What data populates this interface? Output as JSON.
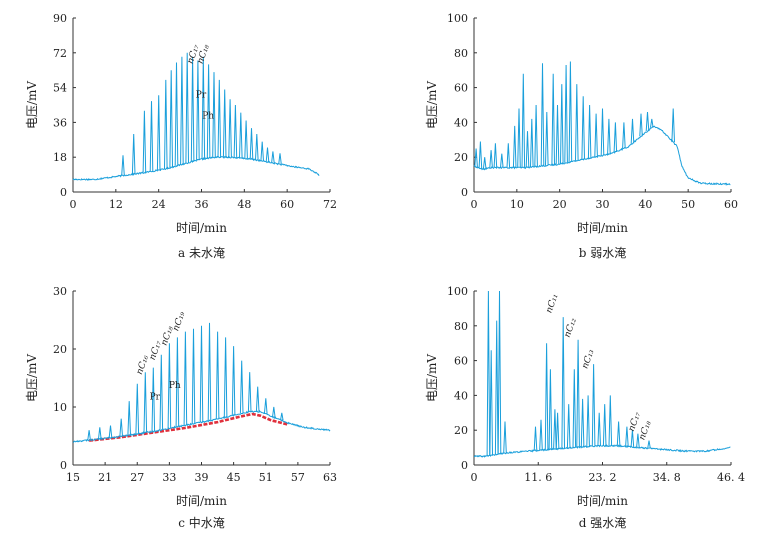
{
  "chart_data": [
    {
      "id": "a",
      "type": "line",
      "caption": "a  未水淹",
      "xlabel": "时间/min",
      "ylabel": "电压/mV",
      "xlim": [
        0,
        72
      ],
      "ylim": [
        0,
        90
      ],
      "xticks": [
        0,
        12,
        24,
        36,
        48,
        60,
        72
      ],
      "yticks": [
        0,
        18,
        36,
        54,
        72,
        90
      ],
      "xtick_labels": [
        "0",
        "12",
        "24",
        "36",
        "48",
        "60",
        "72"
      ],
      "ytick_labels": [
        "0",
        "18",
        "36",
        "54",
        "72",
        "90"
      ],
      "color": "#1a9fdb",
      "baseline": [
        [
          0,
          6.5
        ],
        [
          6,
          6.5
        ],
        [
          10,
          7.5
        ],
        [
          14,
          8.5
        ],
        [
          20,
          10
        ],
        [
          26,
          12
        ],
        [
          32,
          15
        ],
        [
          36,
          17
        ],
        [
          40,
          18
        ],
        [
          44,
          18
        ],
        [
          50,
          17
        ],
        [
          56,
          15
        ],
        [
          62,
          13
        ],
        [
          66,
          12
        ],
        [
          68,
          10
        ],
        [
          69,
          8.5
        ]
      ],
      "peaks": [
        [
          14,
          19
        ],
        [
          17,
          30
        ],
        [
          20,
          42
        ],
        [
          22,
          47
        ],
        [
          24,
          50
        ],
        [
          26,
          58
        ],
        [
          27.5,
          63
        ],
        [
          29,
          67
        ],
        [
          30.5,
          70
        ],
        [
          32,
          72
        ],
        [
          33.5,
          70
        ],
        [
          35,
          68
        ],
        [
          36.5,
          70
        ],
        [
          38,
          66
        ],
        [
          39.5,
          62
        ],
        [
          41,
          58
        ],
        [
          42.5,
          53
        ],
        [
          44,
          48
        ],
        [
          45.5,
          45
        ],
        [
          47,
          41
        ],
        [
          48.5,
          37
        ],
        [
          50,
          33
        ],
        [
          51.5,
          30
        ],
        [
          53,
          26
        ],
        [
          54.5,
          23
        ],
        [
          56,
          21
        ],
        [
          58,
          20
        ]
      ],
      "annotations": [
        {
          "text": "nC₁₇",
          "x": 33.4,
          "y": 66
        },
        {
          "text": "nC₁₈",
          "x": 36.2,
          "y": 66
        },
        {
          "text": "Pr",
          "x": 34.4,
          "y": 49
        },
        {
          "text": "Ph",
          "x": 36.2,
          "y": 38
        }
      ]
    },
    {
      "id": "b",
      "type": "line",
      "caption": "b  弱水淹",
      "xlabel": "时间/min",
      "ylabel": "电压/mV",
      "xlim": [
        0,
        60
      ],
      "ylim": [
        0,
        100
      ],
      "xticks": [
        0,
        10,
        20,
        30,
        40,
        50,
        60
      ],
      "yticks": [
        0,
        20,
        40,
        60,
        80,
        100
      ],
      "xtick_labels": [
        "0",
        "10",
        "20",
        "30",
        "40",
        "50",
        "60"
      ],
      "ytick_labels": [
        "0",
        "20",
        "40",
        "60",
        "80",
        "100"
      ],
      "color": "#1a9fdb",
      "baseline": [
        [
          0,
          15
        ],
        [
          2,
          13
        ],
        [
          4,
          14
        ],
        [
          8,
          14
        ],
        [
          12,
          14
        ],
        [
          16,
          15
        ],
        [
          20,
          16
        ],
        [
          24,
          18
        ],
        [
          28,
          20
        ],
        [
          32,
          22
        ],
        [
          36,
          26
        ],
        [
          40,
          34
        ],
        [
          42,
          38
        ],
        [
          44,
          35
        ],
        [
          46,
          30
        ],
        [
          47.5,
          26
        ],
        [
          48.5,
          15
        ],
        [
          50,
          8
        ],
        [
          53,
          5
        ],
        [
          60,
          4.5
        ]
      ],
      "peaks": [
        [
          0.5,
          25
        ],
        [
          1.5,
          29
        ],
        [
          2.5,
          20
        ],
        [
          4,
          24
        ],
        [
          5,
          28
        ],
        [
          6.5,
          22
        ],
        [
          8,
          28
        ],
        [
          9.5,
          38
        ],
        [
          10.5,
          48
        ],
        [
          11.5,
          68
        ],
        [
          12.5,
          35
        ],
        [
          13.5,
          42
        ],
        [
          14.5,
          50
        ],
        [
          16,
          74
        ],
        [
          17,
          46
        ],
        [
          18.5,
          68
        ],
        [
          19.5,
          50
        ],
        [
          20.5,
          62
        ],
        [
          21.5,
          73
        ],
        [
          22.5,
          75
        ],
        [
          24,
          62
        ],
        [
          25.5,
          55
        ],
        [
          27,
          50
        ],
        [
          28.5,
          45
        ],
        [
          30,
          48
        ],
        [
          31.5,
          42
        ],
        [
          33,
          40
        ],
        [
          35,
          40
        ],
        [
          37,
          42
        ],
        [
          39,
          45
        ],
        [
          40.5,
          46
        ],
        [
          41.5,
          42
        ],
        [
          46.5,
          48
        ]
      ],
      "annotations": []
    },
    {
      "id": "c",
      "type": "line",
      "caption": "c  中水淹",
      "xlabel": "时间/min",
      "ylabel": "电压/mV",
      "xlim": [
        15,
        63
      ],
      "ylim": [
        0,
        30
      ],
      "xticks": [
        15,
        21,
        27,
        33,
        39,
        45,
        51,
        57,
        63
      ],
      "yticks": [
        0,
        10,
        20,
        30
      ],
      "xtick_labels": [
        "15",
        "21",
        "27",
        "33",
        "39",
        "45",
        "51",
        "57",
        "63"
      ],
      "ytick_labels": [
        "0",
        "10",
        "20",
        "30"
      ],
      "color": "#1a9fdb",
      "ucm_color": "#e0303c",
      "ucm": [
        [
          18,
          4.2
        ],
        [
          24,
          4.8
        ],
        [
          30,
          5.6
        ],
        [
          36,
          6.4
        ],
        [
          42,
          7.4
        ],
        [
          46,
          8.3
        ],
        [
          48.5,
          8.8
        ],
        [
          50,
          8.5
        ],
        [
          52,
          7.7
        ],
        [
          55,
          7
        ]
      ],
      "baseline": [
        [
          15,
          4
        ],
        [
          18,
          4.3
        ],
        [
          22,
          4.7
        ],
        [
          26,
          5.2
        ],
        [
          30,
          5.8
        ],
        [
          34,
          6.5
        ],
        [
          38,
          7.2
        ],
        [
          42,
          7.9
        ],
        [
          45,
          8.6
        ],
        [
          48,
          9.2
        ],
        [
          50,
          9.2
        ],
        [
          52,
          8.4
        ],
        [
          55,
          7.3
        ],
        [
          58,
          6.5
        ],
        [
          63,
          6
        ]
      ],
      "peaks": [
        [
          18,
          6
        ],
        [
          20,
          6.5
        ],
        [
          22,
          6.8
        ],
        [
          24,
          8
        ],
        [
          25.5,
          11
        ],
        [
          27,
          14
        ],
        [
          28.5,
          16
        ],
        [
          30,
          16.8
        ],
        [
          31.5,
          19
        ],
        [
          33,
          21
        ],
        [
          34.5,
          22
        ],
        [
          36,
          23
        ],
        [
          37.5,
          23.5
        ],
        [
          39,
          24
        ],
        [
          40.5,
          24.5
        ],
        [
          42,
          23
        ],
        [
          43.5,
          22
        ],
        [
          45,
          20.5
        ],
        [
          46.5,
          18
        ],
        [
          48,
          16
        ],
        [
          49.5,
          13.5
        ],
        [
          51,
          11.5
        ],
        [
          52.5,
          10
        ],
        [
          54,
          9
        ]
      ],
      "annotations": [
        {
          "text": "nC₁₆",
          "x": 27.8,
          "y": 15.5
        },
        {
          "text": "nC₁₇",
          "x": 30.2,
          "y": 18
        },
        {
          "text": "nC₁₈",
          "x": 32.4,
          "y": 20.5
        },
        {
          "text": "nC₁₉",
          "x": 34.6,
          "y": 23
        },
        {
          "text": "Pr",
          "x": 29.3,
          "y": 11.3
        },
        {
          "text": "Ph",
          "x": 32.9,
          "y": 13.3
        }
      ]
    },
    {
      "id": "d",
      "type": "line",
      "caption": "d  强水淹",
      "xlabel": "时间/min",
      "ylabel": "电压/mV",
      "xlim": [
        0,
        46.4
      ],
      "ylim": [
        0,
        100
      ],
      "xticks": [
        0,
        11.6,
        23.2,
        34.8,
        46.4
      ],
      "yticks": [
        0,
        20,
        40,
        60,
        80,
        100
      ],
      "xtick_labels": [
        "0",
        "11. 6",
        "23. 2",
        "34. 8",
        "46. 4"
      ],
      "ytick_labels": [
        "0",
        "20",
        "40",
        "60",
        "80",
        "100"
      ],
      "color": "#1a9fdb",
      "baseline": [
        [
          0,
          5
        ],
        [
          2,
          5
        ],
        [
          4,
          6
        ],
        [
          6,
          7
        ],
        [
          10,
          8
        ],
        [
          14,
          9
        ],
        [
          18,
          10
        ],
        [
          22,
          11
        ],
        [
          26,
          11
        ],
        [
          30,
          10
        ],
        [
          34,
          9
        ],
        [
          38,
          8
        ],
        [
          42,
          8
        ],
        [
          44,
          9
        ],
        [
          46.4,
          10
        ]
      ],
      "peaks": [
        [
          2.6,
          100
        ],
        [
          3.1,
          66
        ],
        [
          4.1,
          83
        ],
        [
          4.6,
          100
        ],
        [
          5.6,
          25
        ],
        [
          11.1,
          22
        ],
        [
          12.1,
          26
        ],
        [
          13.1,
          70
        ],
        [
          13.8,
          55
        ],
        [
          14.6,
          32
        ],
        [
          15.1,
          30
        ],
        [
          16.1,
          85
        ],
        [
          17.1,
          35
        ],
        [
          18.1,
          55
        ],
        [
          18.8,
          72
        ],
        [
          19.6,
          38
        ],
        [
          20.6,
          40
        ],
        [
          21.6,
          58
        ],
        [
          22.6,
          30
        ],
        [
          23.6,
          35
        ],
        [
          24.6,
          40
        ],
        [
          26.1,
          25
        ],
        [
          27.6,
          22
        ],
        [
          28.6,
          20
        ],
        [
          29.6,
          18
        ],
        [
          31.6,
          14
        ]
      ],
      "annotations": [
        {
          "text": "nC₁₁",
          "x": 13.9,
          "y": 87
        },
        {
          "text": "nC₁₂",
          "x": 17.2,
          "y": 73
        },
        {
          "text": "nC₁₃",
          "x": 20.4,
          "y": 55
        },
        {
          "text": "nC₁₇",
          "x": 28.8,
          "y": 19
        },
        {
          "text": "nC₁₈",
          "x": 30.7,
          "y": 14
        }
      ]
    }
  ]
}
